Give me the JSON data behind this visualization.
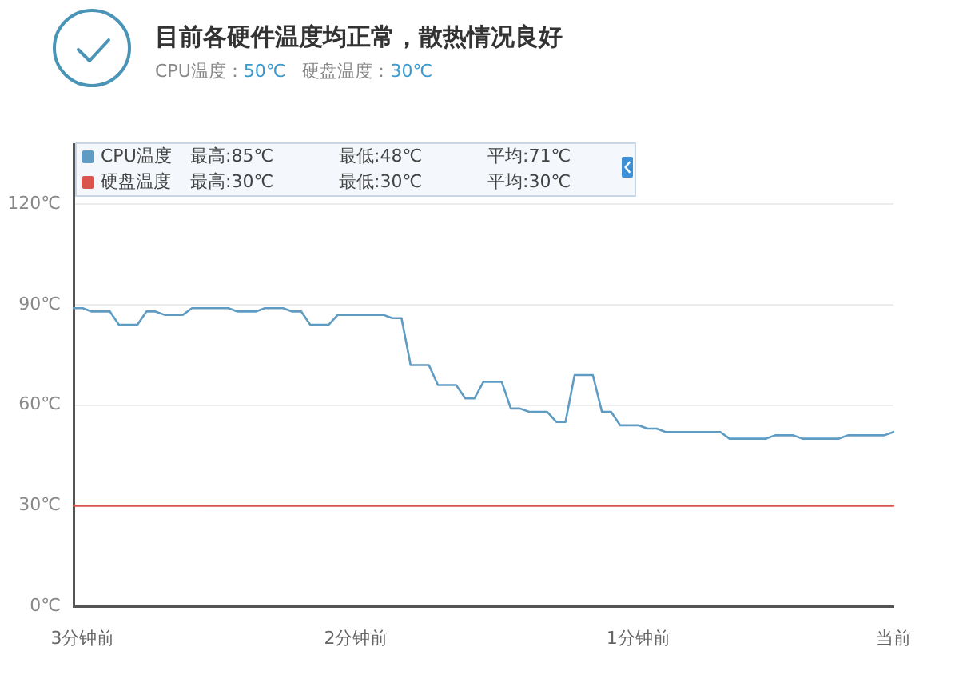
{
  "chart_data": {
    "type": "line",
    "title": "目前各硬件温度均正常，散热情况良好",
    "subtitle": "CPU温度：50℃   硬盘温度：30℃",
    "annotations": [
      "最高:85℃",
      "最低:48℃",
      "平均:71℃",
      "最高:30℃",
      "最低:30℃",
      "平均:30℃"
    ],
    "categories": [
      null,
      "3分钟前",
      null,
      null,
      null,
      null,
      null,
      null,
      null,
      null,
      null,
      null,
      null,
      null,
      null,
      null,
      null,
      null,
      null,
      null,
      null,
      null,
      null,
      null,
      null,
      null,
      null,
      null,
      null,
      null,
      null,
      "2分钟前",
      null,
      null,
      null,
      null,
      null,
      null,
      null,
      null,
      null,
      null,
      null,
      null,
      null,
      null,
      null,
      null,
      null,
      null,
      null,
      null,
      null,
      null,
      null,
      null,
      null,
      null,
      null,
      null,
      null,
      null,
      "1分钟前",
      null,
      null,
      null,
      null,
      null,
      null,
      null,
      null,
      null,
      null,
      null,
      null,
      null,
      null,
      null,
      null,
      null,
      null,
      null,
      null,
      null,
      null,
      null,
      null,
      null,
      null,
      null,
      "当前"
    ],
    "series": [
      {
        "name": "CPU温度",
        "color": "#5f9cc4",
        "values": [
          89,
          89,
          88,
          88,
          88,
          84,
          84,
          84,
          88,
          88,
          87,
          87,
          87,
          89,
          89,
          89,
          89,
          89,
          88,
          88,
          88,
          89,
          89,
          89,
          88,
          88,
          84,
          84,
          84,
          87,
          87,
          87,
          87,
          87,
          87,
          86,
          86,
          72,
          72,
          72,
          66,
          66,
          66,
          62,
          62,
          67,
          67,
          67,
          59,
          59,
          58,
          58,
          58,
          55,
          55,
          69,
          69,
          69,
          58,
          58,
          54,
          54,
          54,
          53,
          53,
          52,
          52,
          52,
          52,
          52,
          52,
          52,
          50,
          50,
          50,
          50,
          50,
          51,
          51,
          51,
          50,
          50,
          50,
          50,
          50,
          51,
          51,
          51,
          51,
          51,
          52
        ]
      },
      {
        "name": "硬盘温度",
        "color": "#d9534f",
        "values": [
          30,
          30,
          30,
          30,
          30,
          30,
          30,
          30,
          30,
          30,
          30,
          30,
          30,
          30,
          30,
          30,
          30,
          30,
          30,
          30,
          30,
          30,
          30,
          30,
          30,
          30,
          30,
          30,
          30,
          30,
          30,
          30,
          30,
          30,
          30,
          30,
          30,
          30,
          30,
          30,
          30,
          30,
          30,
          30,
          30,
          30,
          30,
          30,
          30,
          30,
          30,
          30,
          30,
          30,
          30,
          30,
          30,
          30,
          30,
          30,
          30,
          30,
          30,
          30,
          30,
          30,
          30,
          30,
          30,
          30,
          30,
          30,
          30,
          30,
          30,
          30,
          30,
          30,
          30,
          30,
          30,
          30,
          30,
          30,
          30,
          30,
          30,
          30,
          30,
          30,
          30
        ]
      }
    ],
    "ylim": [
      0,
      138
    ],
    "yticks": [
      {
        "value": 0,
        "label": "0℃"
      },
      {
        "value": 30,
        "label": "30℃"
      },
      {
        "value": 60,
        "label": "60℃"
      },
      {
        "value": 90,
        "label": "90℃"
      },
      {
        "value": 120,
        "label": "120℃"
      }
    ],
    "grid": "y",
    "legend": "top left"
  }
}
